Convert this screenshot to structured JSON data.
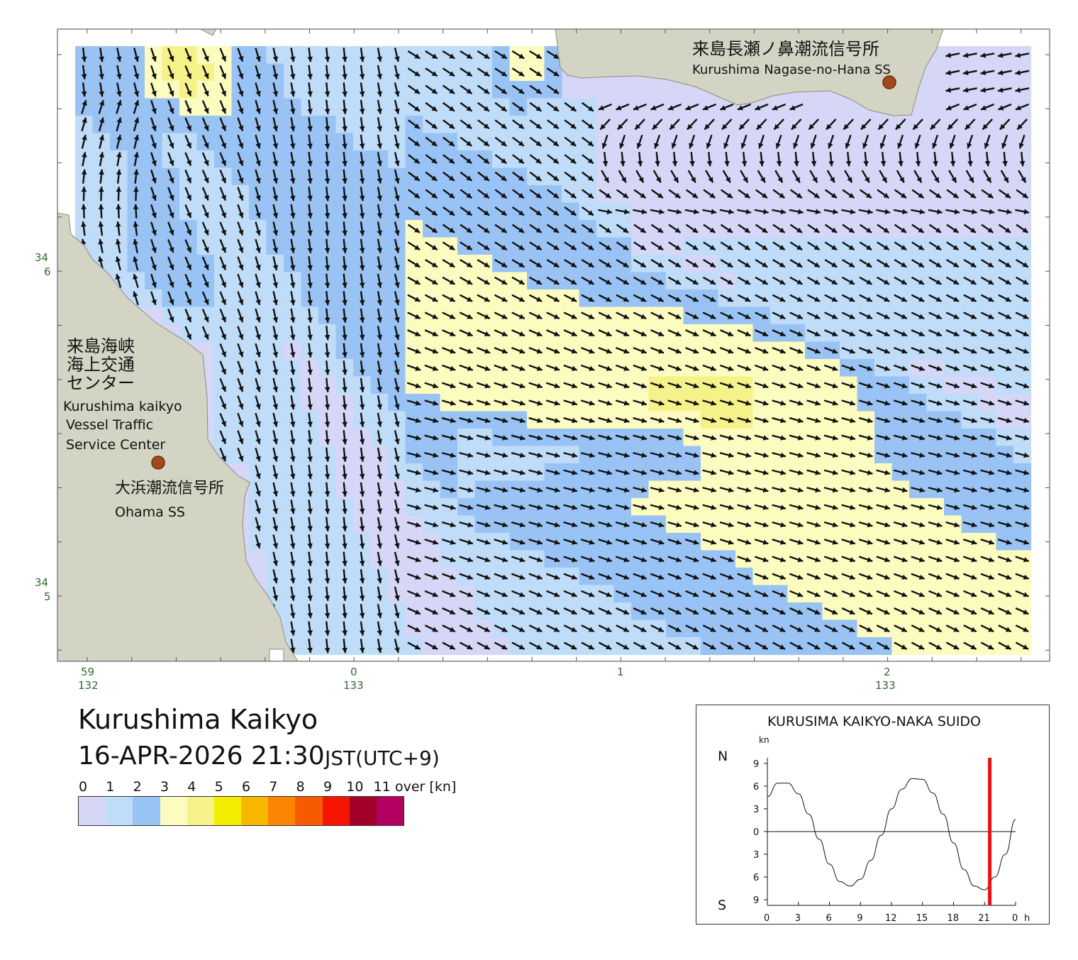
{
  "area_title": "Kurushima Kaikyo",
  "timestamp": "16-APR-2026 21:30",
  "timezone": "JST(UTC+9)",
  "legend": {
    "labels": [
      "0",
      "1",
      "2",
      "3",
      "4",
      "5",
      "6",
      "7",
      "8",
      "9",
      "10",
      "11"
    ],
    "unit": "over [kn]",
    "colors": [
      "#d6d6f6",
      "#bfdcf8",
      "#99c3f4",
      "#fdfcc0",
      "#f6f28a",
      "#f4ed00",
      "#f8b800",
      "#fb8400",
      "#f85a00",
      "#f41400",
      "#a20028",
      "#b40060"
    ]
  },
  "map": {
    "land_color": "#d4d4c4",
    "coords": {
      "lat_labels": [
        {
          "deg": "34",
          "min": "6"
        },
        {
          "deg": "34",
          "min": "5"
        }
      ],
      "lon_labels": [
        {
          "deg": "132",
          "min": "59"
        },
        {
          "deg": "133",
          "min": "0"
        },
        {
          "deg": "",
          "min": "1"
        },
        {
          "deg": "133",
          "min": "2"
        }
      ]
    },
    "labels": {
      "vtsc_ja": [
        "来島海峡",
        "海上交通",
        "センター"
      ],
      "vtsc_en": [
        "Kurushima kaikyo",
        "Vessel Traffic",
        "Service Center"
      ],
      "ohama_ja": "大浜潮流信号所",
      "ohama_en": "Ohama SS",
      "nagase_ja": "来島長瀬ノ鼻潮流信号所",
      "nagase_en": "Kurushima Nagase-no-Hana SS"
    }
  },
  "tide_chart": {
    "title": "KURUSIMA KAIKYO-NAKA SUIDO",
    "unit": "kn",
    "north_label": "N",
    "south_label": "S",
    "hour_suffix": "h",
    "y_tick_labels": [
      "9",
      "6",
      "3",
      "0",
      "3",
      "6",
      "9"
    ],
    "x_tick_labels": [
      "0",
      "3",
      "6",
      "9",
      "12",
      "15",
      "18",
      "21",
      "0"
    ],
    "current_hour": 21.5,
    "marker_color": "#ee1111",
    "chart_data": {
      "type": "line",
      "x_label": "h",
      "y_label": "kn",
      "ylim": [
        -9,
        9
      ],
      "xlim": [
        0,
        24
      ],
      "series": [
        {
          "x": [
            0,
            1,
            2,
            3,
            4,
            5,
            6,
            7,
            8,
            9,
            10,
            11,
            12,
            13,
            14,
            15,
            16,
            17,
            18,
            19,
            20,
            21,
            22,
            23,
            24
          ],
          "y": [
            4.6,
            6.4,
            6.4,
            5.0,
            2.3,
            -1.0,
            -4.3,
            -6.6,
            -7.2,
            -6.3,
            -3.8,
            -0.5,
            3.0,
            5.6,
            7.0,
            6.9,
            5.1,
            2.3,
            -1.5,
            -5.0,
            -7.2,
            -7.7,
            -6.0,
            -3.0,
            1.6
          ]
        }
      ]
    }
  }
}
